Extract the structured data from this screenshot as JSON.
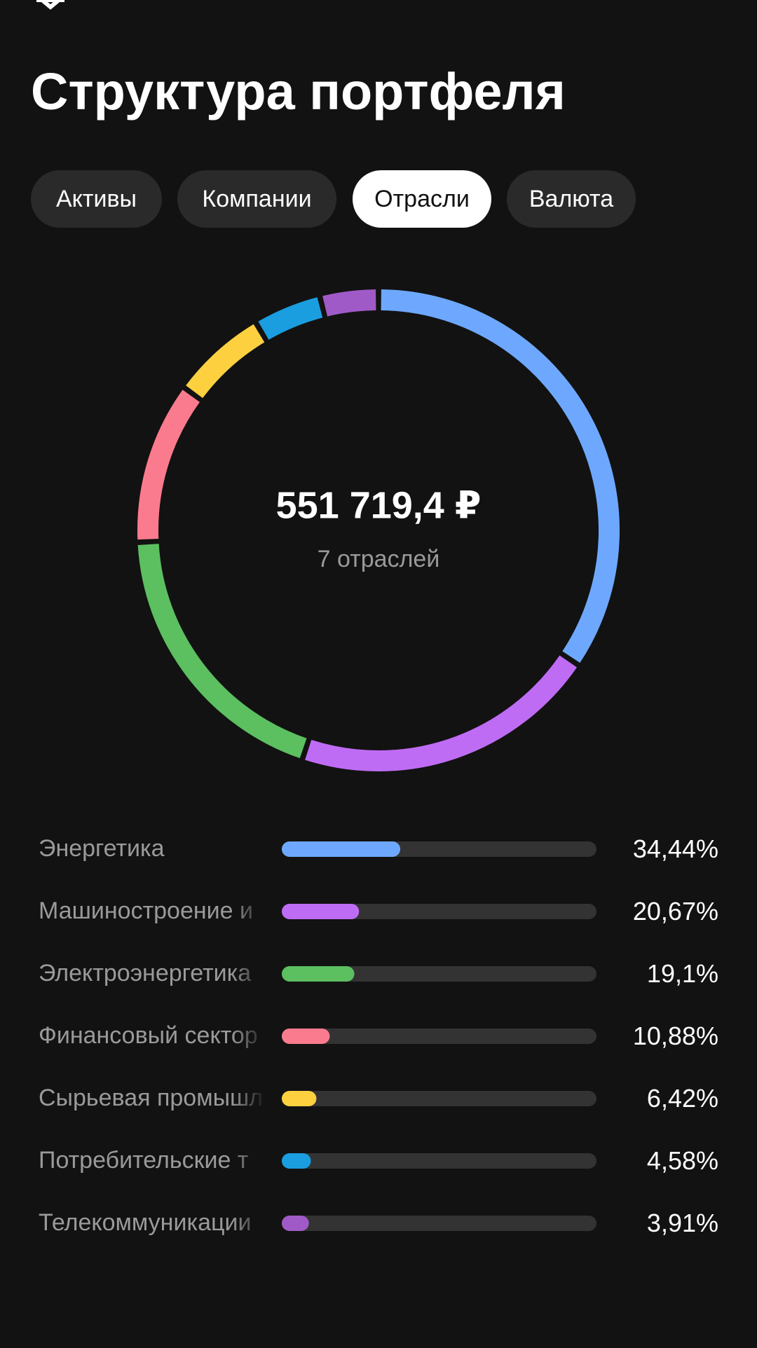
{
  "header": {
    "title": "Структура портфеля"
  },
  "tabs": [
    {
      "label": "Активы",
      "active": false
    },
    {
      "label": "Компании",
      "active": false
    },
    {
      "label": "Отрасли",
      "active": true
    },
    {
      "label": "Валюта",
      "active": false
    }
  ],
  "chart_data": {
    "type": "donut",
    "center_value": "551 719,4 ₽",
    "center_caption": "7 отраслей",
    "categories": [
      "Энергетика",
      "Машиностроение и",
      "Электроэнергетика",
      "Финансовый сектор",
      "Сырьевая промышл",
      "Потребительские т",
      "Телекоммуникации"
    ],
    "values": [
      34.44,
      20.67,
      19.1,
      10.88,
      6.42,
      4.58,
      3.91
    ],
    "value_labels": [
      "34,44%",
      "20,67%",
      "19,1%",
      "10,88%",
      "6,42%",
      "4,58%",
      "3,91%"
    ],
    "colors": [
      "#6ea8fe",
      "#bf6cf5",
      "#5cbf60",
      "#fb7b8e",
      "#fdd040",
      "#1a9ee0",
      "#a05ac8"
    ]
  }
}
